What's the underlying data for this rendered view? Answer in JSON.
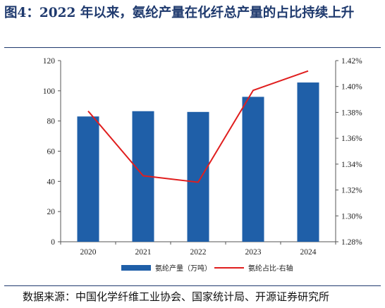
{
  "title": "图4：2022 年以来，氨纶产量在化纤总产量的占比持续上升",
  "source": "数据来源：中国化学纤维工业协会、国家统计局、开源证券研究所",
  "colors": {
    "bar": "#1f5fa8",
    "line": "#e01e1e",
    "title": "#1f3a6e"
  },
  "chart_data": {
    "type": "bar+line",
    "categories": [
      "2020",
      "2021",
      "2022",
      "2023",
      "2024"
    ],
    "series": [
      {
        "name": "氨纶产量（万吨）",
        "type": "bar",
        "axis": "left",
        "values": [
          83,
          86.5,
          86,
          96,
          105.5
        ]
      },
      {
        "name": "氨纶占比-右轴",
        "type": "line",
        "axis": "right",
        "values": [
          1.381,
          1.331,
          1.326,
          1.397,
          1.412
        ]
      }
    ],
    "y_left": {
      "min": 0,
      "max": 120,
      "ticks": [
        "0",
        "20",
        "40",
        "60",
        "80",
        "100",
        "120"
      ]
    },
    "y_right": {
      "min": 1.28,
      "max": 1.42,
      "ticks": [
        "1.28%",
        "1.30%",
        "1.32%",
        "1.34%",
        "1.36%",
        "1.38%",
        "1.40%",
        "1.42%"
      ]
    },
    "grid": false,
    "legend": "bottom"
  }
}
